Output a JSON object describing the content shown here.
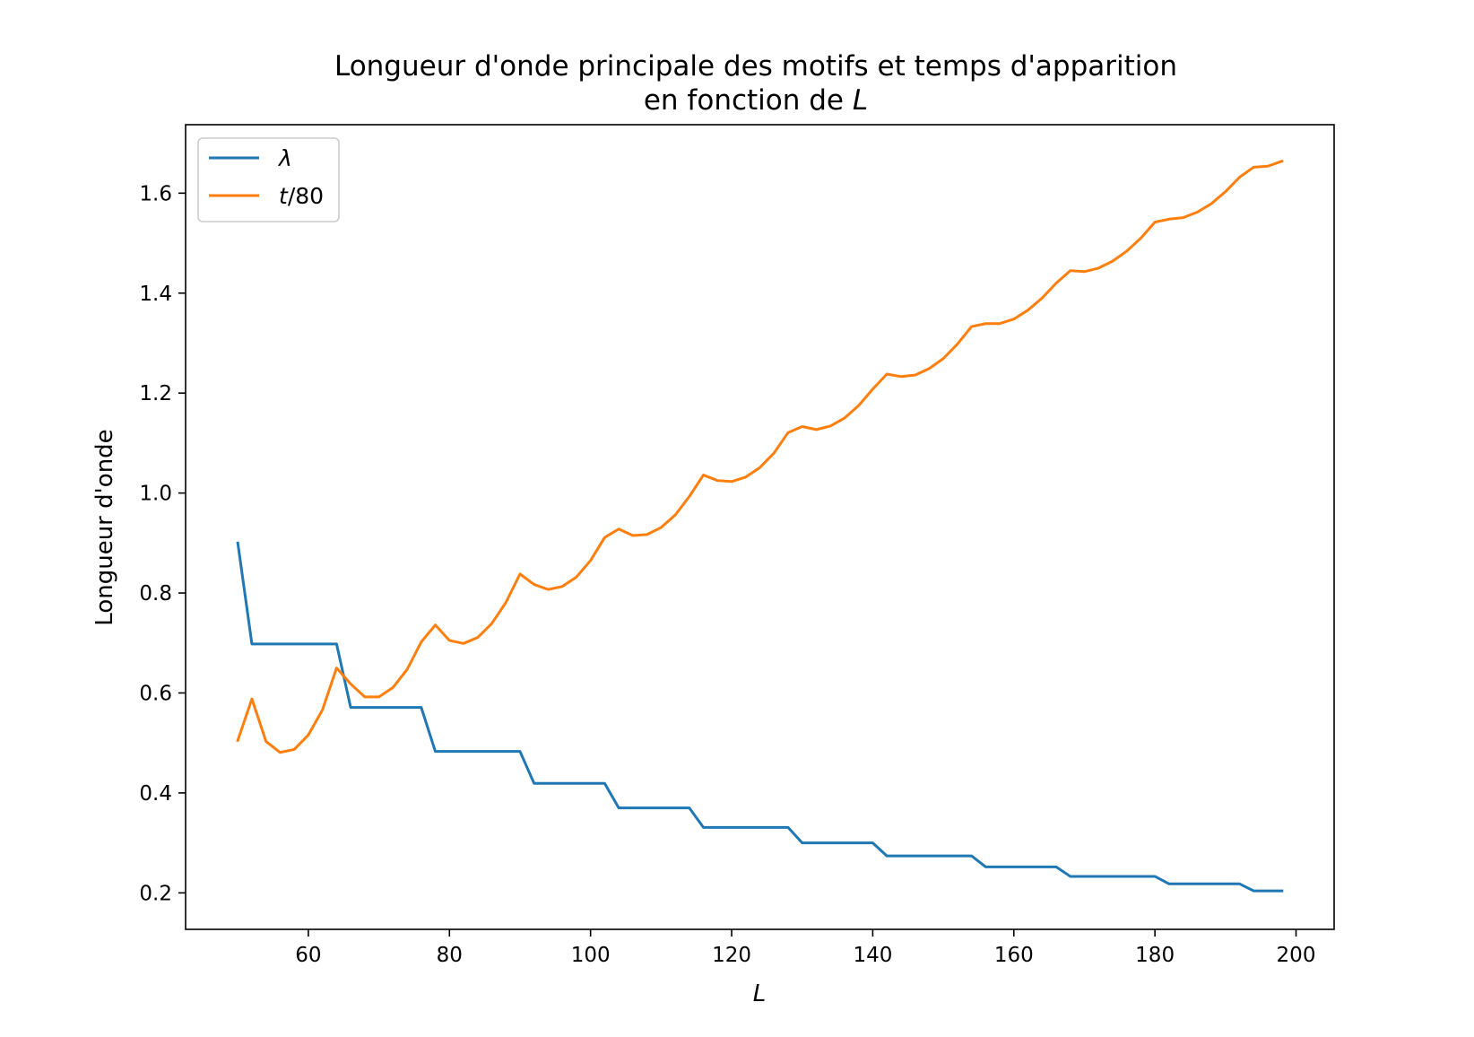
{
  "chart_data": {
    "type": "line",
    "title_line1": "Longueur d'onde principale des motifs et temps d'apparition",
    "title_line2_prefix": "en fonction de ",
    "title_line2_var": "L",
    "xlabel": "L",
    "ylabel": "Longueur d'onde",
    "xlim": [
      42.6,
      205.4
    ],
    "ylim": [
      0.127,
      1.737
    ],
    "xticks": [
      60,
      80,
      100,
      120,
      140,
      160,
      180,
      200
    ],
    "xtick_labels": [
      "60",
      "80",
      "100",
      "120",
      "140",
      "160",
      "180",
      "200"
    ],
    "yticks": [
      0.2,
      0.4,
      0.6,
      0.8,
      1.0,
      1.2,
      1.4,
      1.6
    ],
    "ytick_labels": [
      "0.2",
      "0.4",
      "0.6",
      "0.8",
      "1.0",
      "1.2",
      "1.4",
      "1.6"
    ],
    "grid": false,
    "legend_position": "upper-left",
    "x": [
      50,
      52,
      54,
      56,
      58,
      60,
      62,
      64,
      66,
      68,
      70,
      72,
      74,
      76,
      78,
      80,
      82,
      84,
      86,
      88,
      90,
      92,
      94,
      96,
      98,
      100,
      102,
      104,
      106,
      108,
      110,
      112,
      114,
      116,
      118,
      120,
      122,
      124,
      126,
      128,
      130,
      132,
      134,
      136,
      138,
      140,
      142,
      144,
      146,
      148,
      150,
      152,
      154,
      156,
      158,
      160,
      162,
      164,
      166,
      168,
      170,
      172,
      174,
      176,
      178,
      180,
      182,
      184,
      186,
      188,
      190,
      192,
      194,
      196,
      198
    ],
    "series": [
      {
        "name": "λ",
        "color": "#1f77b4",
        "values": [
          0.9,
          0.698,
          0.698,
          0.698,
          0.698,
          0.698,
          0.698,
          0.698,
          0.571,
          0.571,
          0.571,
          0.571,
          0.571,
          0.571,
          0.483,
          0.483,
          0.483,
          0.483,
          0.483,
          0.483,
          0.483,
          0.419,
          0.419,
          0.419,
          0.419,
          0.419,
          0.419,
          0.37,
          0.37,
          0.37,
          0.37,
          0.37,
          0.37,
          0.331,
          0.331,
          0.331,
          0.331,
          0.331,
          0.331,
          0.331,
          0.3,
          0.3,
          0.3,
          0.3,
          0.3,
          0.3,
          0.274,
          0.274,
          0.274,
          0.274,
          0.274,
          0.274,
          0.274,
          0.252,
          0.252,
          0.252,
          0.252,
          0.252,
          0.252,
          0.233,
          0.233,
          0.233,
          0.233,
          0.233,
          0.233,
          0.233,
          0.218,
          0.218,
          0.218,
          0.218,
          0.218,
          0.218,
          0.204,
          0.204,
          0.204
        ]
      },
      {
        "name_var": "t",
        "name_suffix": "/80",
        "color": "#ff7f0e",
        "values": [
          0.505,
          0.588,
          0.503,
          0.481,
          0.487,
          0.516,
          0.566,
          0.65,
          0.618,
          0.592,
          0.592,
          0.611,
          0.647,
          0.702,
          0.736,
          0.705,
          0.699,
          0.711,
          0.739,
          0.781,
          0.838,
          0.817,
          0.807,
          0.813,
          0.832,
          0.865,
          0.911,
          0.928,
          0.915,
          0.917,
          0.931,
          0.956,
          0.993,
          1.036,
          1.025,
          1.023,
          1.032,
          1.051,
          1.08,
          1.121,
          1.133,
          1.127,
          1.134,
          1.15,
          1.175,
          1.208,
          1.238,
          1.233,
          1.236,
          1.249,
          1.269,
          1.298,
          1.333,
          1.339,
          1.339,
          1.348,
          1.366,
          1.39,
          1.42,
          1.445,
          1.443,
          1.45,
          1.464,
          1.484,
          1.51,
          1.542,
          1.548,
          1.551,
          1.562,
          1.579,
          1.603,
          1.632,
          1.652,
          1.654,
          1.664
        ]
      }
    ]
  }
}
